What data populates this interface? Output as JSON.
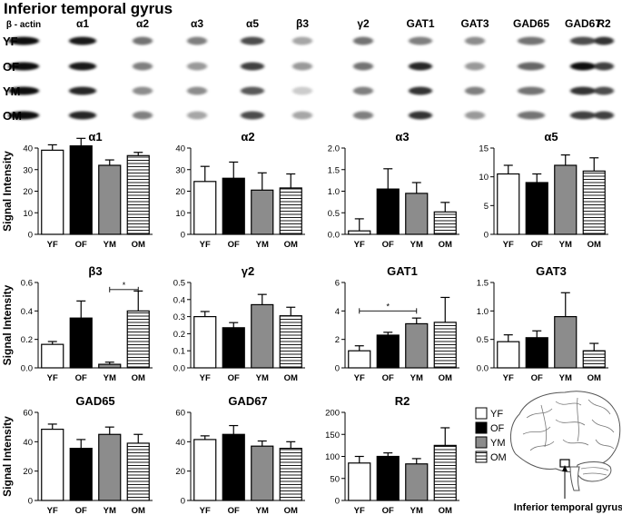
{
  "title": "Inferior temporal gyrus",
  "blot": {
    "columns": [
      "β - actin",
      "α1",
      "α2",
      "α3",
      "α5",
      "β3",
      "γ2",
      "GAT1",
      "GAT3",
      "GAD65",
      "GAD67",
      "R2"
    ],
    "rows": [
      "YF",
      "OF",
      "YM",
      "OM"
    ]
  },
  "ylabel": "Signal Intensity",
  "legend": {
    "title": "",
    "items": [
      "YF",
      "OF",
      "YM",
      "OM"
    ]
  },
  "brain_label": "Inferior temporal gyrus",
  "colors": {
    "YF": "#ffffff",
    "OF": "#000000",
    "YM": "#8c8c8c",
    "OM": "hatch",
    "axis": "#000000"
  },
  "chart_data": [
    {
      "type": "bar",
      "title": "α1",
      "categories": [
        "YF",
        "OF",
        "YM",
        "OM"
      ],
      "values": [
        39,
        41,
        32,
        36.5
      ],
      "errors": [
        2.5,
        3.5,
        2.5,
        1.5
      ],
      "ylim": [
        0,
        40
      ],
      "yticks": [
        0,
        10,
        20,
        30,
        40
      ],
      "ylabel": "Signal Intensity",
      "significance": []
    },
    {
      "type": "bar",
      "title": "α2",
      "categories": [
        "YF",
        "OF",
        "YM",
        "OM"
      ],
      "values": [
        24.5,
        26,
        20.5,
        21.5
      ],
      "errors": [
        7,
        7.5,
        8,
        6.5
      ],
      "ylim": [
        0,
        40
      ],
      "yticks": [
        0,
        10,
        20,
        30,
        40
      ],
      "ylabel": "",
      "significance": []
    },
    {
      "type": "bar",
      "title": "α3",
      "categories": [
        "YF",
        "OF",
        "YM",
        "OM"
      ],
      "values": [
        0.08,
        1.05,
        0.95,
        0.52
      ],
      "errors": [
        0.28,
        0.47,
        0.25,
        0.22
      ],
      "ylim": [
        0,
        2.0
      ],
      "yticks": [
        "0.0",
        "0.5",
        "1.0",
        "1.5",
        "2.0"
      ],
      "ylabel": "",
      "significance": []
    },
    {
      "type": "bar",
      "title": "α5",
      "categories": [
        "YF",
        "OF",
        "YM",
        "OM"
      ],
      "values": [
        10.5,
        9,
        12,
        11
      ],
      "errors": [
        1.5,
        1.5,
        1.8,
        2.3
      ],
      "ylim": [
        0,
        15
      ],
      "yticks": [
        0,
        5,
        10,
        15
      ],
      "ylabel": "",
      "significance": []
    },
    {
      "type": "bar",
      "title": "β3",
      "categories": [
        "YF",
        "OF",
        "YM",
        "OM"
      ],
      "values": [
        0.165,
        0.35,
        0.025,
        0.4
      ],
      "errors": [
        0.02,
        0.12,
        0.015,
        0.14
      ],
      "ylim": [
        0,
        0.6
      ],
      "yticks": [
        "0.0",
        "0.2",
        "0.4",
        "0.6"
      ],
      "ylabel": "Signal Intensity",
      "significance": [
        {
          "from": 2,
          "to": 3,
          "label": "*"
        }
      ]
    },
    {
      "type": "bar",
      "title": "γ2",
      "categories": [
        "YF",
        "OF",
        "YM",
        "OM"
      ],
      "values": [
        0.3,
        0.235,
        0.37,
        0.305
      ],
      "errors": [
        0.03,
        0.03,
        0.06,
        0.05
      ],
      "ylim": [
        0,
        0.5
      ],
      "yticks": [
        "0.0",
        "0.1",
        "0.2",
        "0.3",
        "0.4",
        "0.5"
      ],
      "ylabel": "",
      "significance": []
    },
    {
      "type": "bar",
      "title": "GAT1",
      "categories": [
        "YF",
        "OF",
        "YM",
        "OM"
      ],
      "values": [
        1.2,
        2.3,
        3.1,
        3.2
      ],
      "errors": [
        0.35,
        0.2,
        0.4,
        1.75
      ],
      "ylim": [
        0,
        6
      ],
      "yticks": [
        0,
        2,
        4,
        6
      ],
      "ylabel": "",
      "significance": [
        {
          "from": 0,
          "to": 2,
          "label": "*"
        }
      ]
    },
    {
      "type": "bar",
      "title": "GAT3",
      "categories": [
        "YF",
        "OF",
        "YM",
        "OM"
      ],
      "values": [
        0.46,
        0.53,
        0.9,
        0.3
      ],
      "errors": [
        0.12,
        0.12,
        0.42,
        0.13
      ],
      "ylim": [
        0,
        1.5
      ],
      "yticks": [
        "0.0",
        "0.5",
        "1.0",
        "1.5"
      ],
      "ylabel": "",
      "significance": []
    },
    {
      "type": "bar",
      "title": "GAD65",
      "categories": [
        "YF",
        "OF",
        "YM",
        "OM"
      ],
      "values": [
        48.5,
        35.5,
        45,
        39
      ],
      "errors": [
        3.5,
        6,
        5,
        6
      ],
      "ylim": [
        0,
        60
      ],
      "yticks": [
        0,
        20,
        40,
        60
      ],
      "ylabel": "Signal Intensity",
      "significance": []
    },
    {
      "type": "bar",
      "title": "GAD67",
      "categories": [
        "YF",
        "OF",
        "YM",
        "OM"
      ],
      "values": [
        41.5,
        45,
        37,
        35.5
      ],
      "errors": [
        2.5,
        6,
        3.5,
        4.5
      ],
      "ylim": [
        0,
        60
      ],
      "yticks": [
        0,
        20,
        40,
        60
      ],
      "ylabel": "",
      "significance": []
    },
    {
      "type": "bar",
      "title": "R2",
      "categories": [
        "YF",
        "OF",
        "YM",
        "OM"
      ],
      "values": [
        85,
        100,
        83,
        125
      ],
      "errors": [
        15,
        8,
        12,
        40
      ],
      "ylim": [
        0,
        200
      ],
      "yticks": [
        0,
        50,
        100,
        150,
        200
      ],
      "ylabel": "",
      "significance": []
    }
  ]
}
